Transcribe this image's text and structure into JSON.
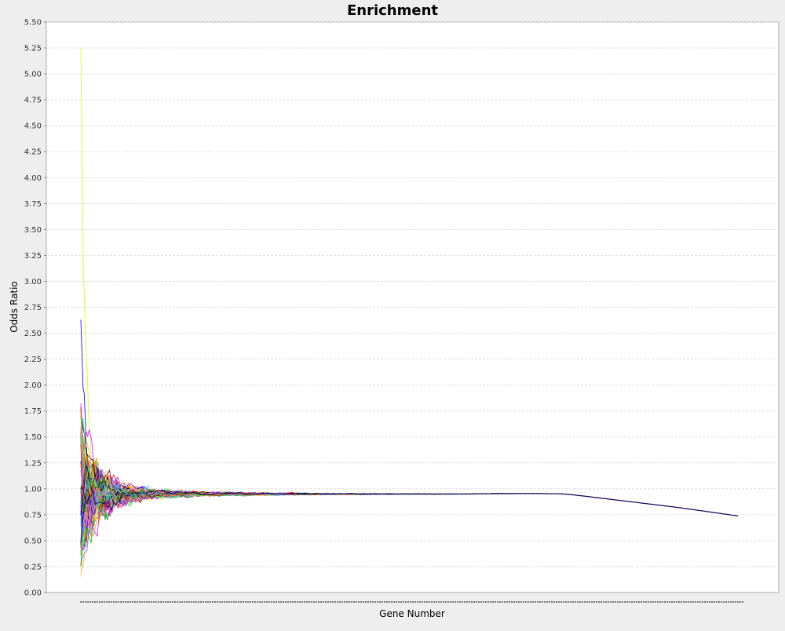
{
  "chart_data": {
    "type": "line",
    "title": "Enrichment",
    "xlabel": "Gene Number",
    "ylabel": "Odds Ratio",
    "ylim": [
      0,
      5.5
    ],
    "y_ticks": [
      "0.00",
      "0.25",
      "0.50",
      "0.75",
      "1.00",
      "1.25",
      "1.50",
      "1.75",
      "2.00",
      "2.25",
      "2.50",
      "2.75",
      "3.00",
      "3.25",
      "3.50",
      "3.75",
      "4.00",
      "4.25",
      "4.50",
      "4.75",
      "5.00",
      "5.25",
      "5.50"
    ],
    "x_range": [
      0,
      1
    ],
    "x_tick_labels": "not legible (dense dotted tick row)",
    "grid": true,
    "legend": "none",
    "series_count_approx": 60,
    "series_colors": [
      "#ff0000",
      "#0000ff",
      "#00c800",
      "#ffcc00",
      "#ff00ff",
      "#00cccc",
      "#000000",
      "#ff8800",
      "#8800ff",
      "#00ff66",
      "#cccc00",
      "#ff6699",
      "#6699ff",
      "#996633",
      "#66cc66",
      "#9999ff",
      "#ff9999",
      "#008800",
      "#880000",
      "#000088"
    ],
    "series_shape": {
      "description": "Many series begin at high variance near the start of the gene list (one series peaking near 5.25, another near 2.63), quickly converge to ~0.95 by about 10% of the x-range, stay near 0.95 until ~78%, then all decline together to ~0.73 at the end.",
      "peak_values": [
        5.25,
        2.63
      ],
      "plateau_value": 0.95,
      "final_value": 0.73
    },
    "convergent_path": {
      "x": [
        0.3,
        0.55,
        0.68,
        0.73,
        0.9,
        1.0
      ],
      "y": [
        0.95,
        0.95,
        0.955,
        0.95,
        0.82,
        0.73
      ]
    }
  }
}
